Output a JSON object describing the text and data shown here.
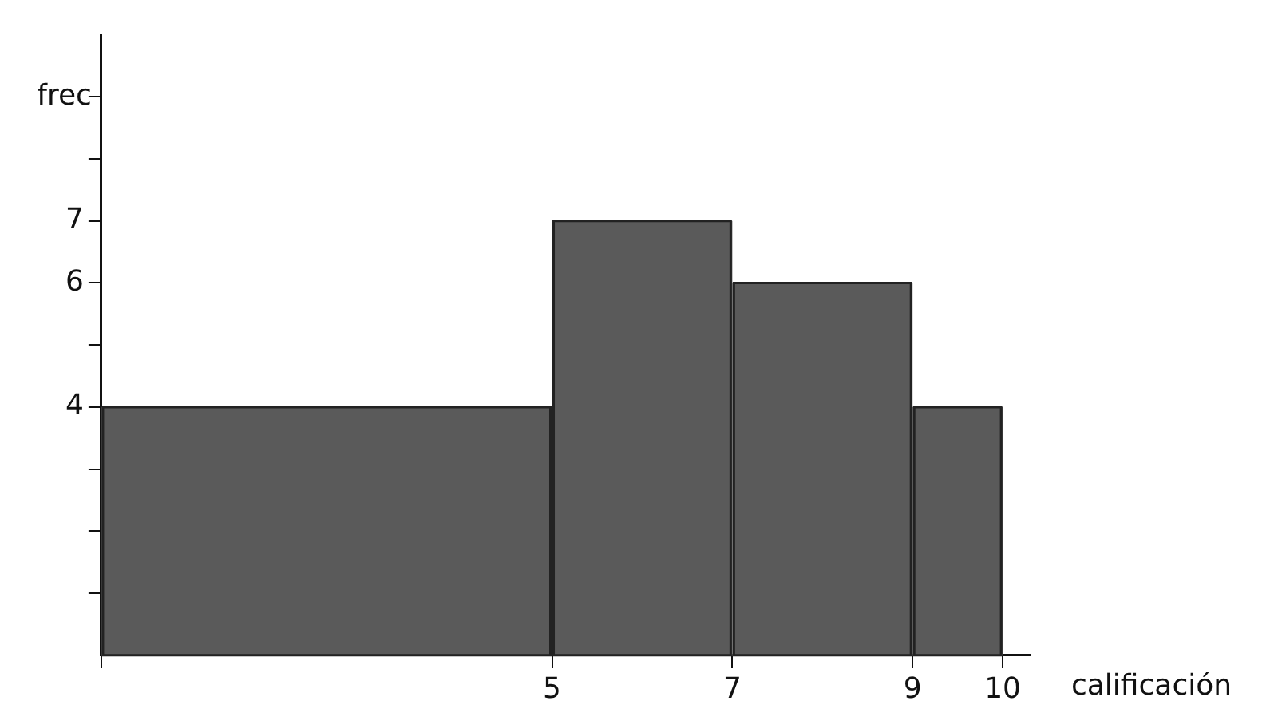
{
  "chart_data": {
    "type": "histogram",
    "xlabel": "calificación",
    "ylabel": "frec",
    "bins": [
      0,
      5,
      7,
      9,
      10
    ],
    "values": [
      4,
      7,
      6,
      4
    ],
    "color": "#5a5a5a",
    "xlim": [
      0,
      10.3
    ],
    "xticks": [
      {
        "value": 0,
        "label": null
      },
      5,
      7,
      9,
      10
    ],
    "ylim": [
      0,
      10
    ],
    "yticks": [
      {
        "value": 1,
        "label": null
      },
      {
        "value": 2,
        "label": null
      },
      {
        "value": 3,
        "label": null
      },
      4,
      {
        "value": 5,
        "label": null
      },
      6,
      7,
      {
        "value": 8,
        "label": null
      },
      {
        "value": 9,
        "label": null
      }
    ],
    "grid": false,
    "legend": false
  }
}
